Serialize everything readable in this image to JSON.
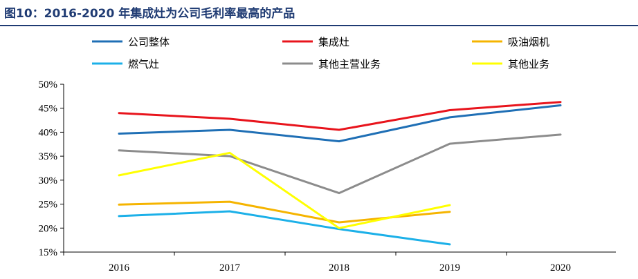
{
  "title": "图10：2016-2020 年集成灶为公司毛利率最高的产品",
  "chart_data": {
    "type": "line",
    "title": "图10：2016-2020 年集成灶为公司毛利率最高的产品",
    "categories": [
      "2016",
      "2017",
      "2018",
      "2019",
      "2020"
    ],
    "ylim": [
      0.15,
      0.5
    ],
    "yticks": [
      "50%",
      "45%",
      "40%",
      "35%",
      "30%",
      "25%",
      "20%",
      "15%"
    ],
    "grid": false,
    "legend_position": "top",
    "series": [
      {
        "name": "公司整体",
        "color": "#1f6fb5",
        "values": [
          0.397,
          0.405,
          0.381,
          0.431,
          0.456
        ]
      },
      {
        "name": "集成灶",
        "color": "#e8141c",
        "values": [
          0.44,
          0.428,
          0.405,
          0.446,
          0.463
        ]
      },
      {
        "name": "吸油烟机",
        "color": "#f5b400",
        "values": [
          0.249,
          0.255,
          0.212,
          0.234,
          null
        ]
      },
      {
        "name": "燃气灶",
        "color": "#1cb0e8",
        "values": [
          0.225,
          0.235,
          0.198,
          0.166,
          null
        ]
      },
      {
        "name": "其他主营业务",
        "color": "#8c8c8c",
        "values": [
          0.362,
          0.35,
          0.273,
          0.376,
          0.395
        ]
      },
      {
        "name": "其他业务",
        "color": "#ffff00",
        "values": [
          0.31,
          0.357,
          0.2,
          0.248,
          null
        ]
      }
    ]
  }
}
